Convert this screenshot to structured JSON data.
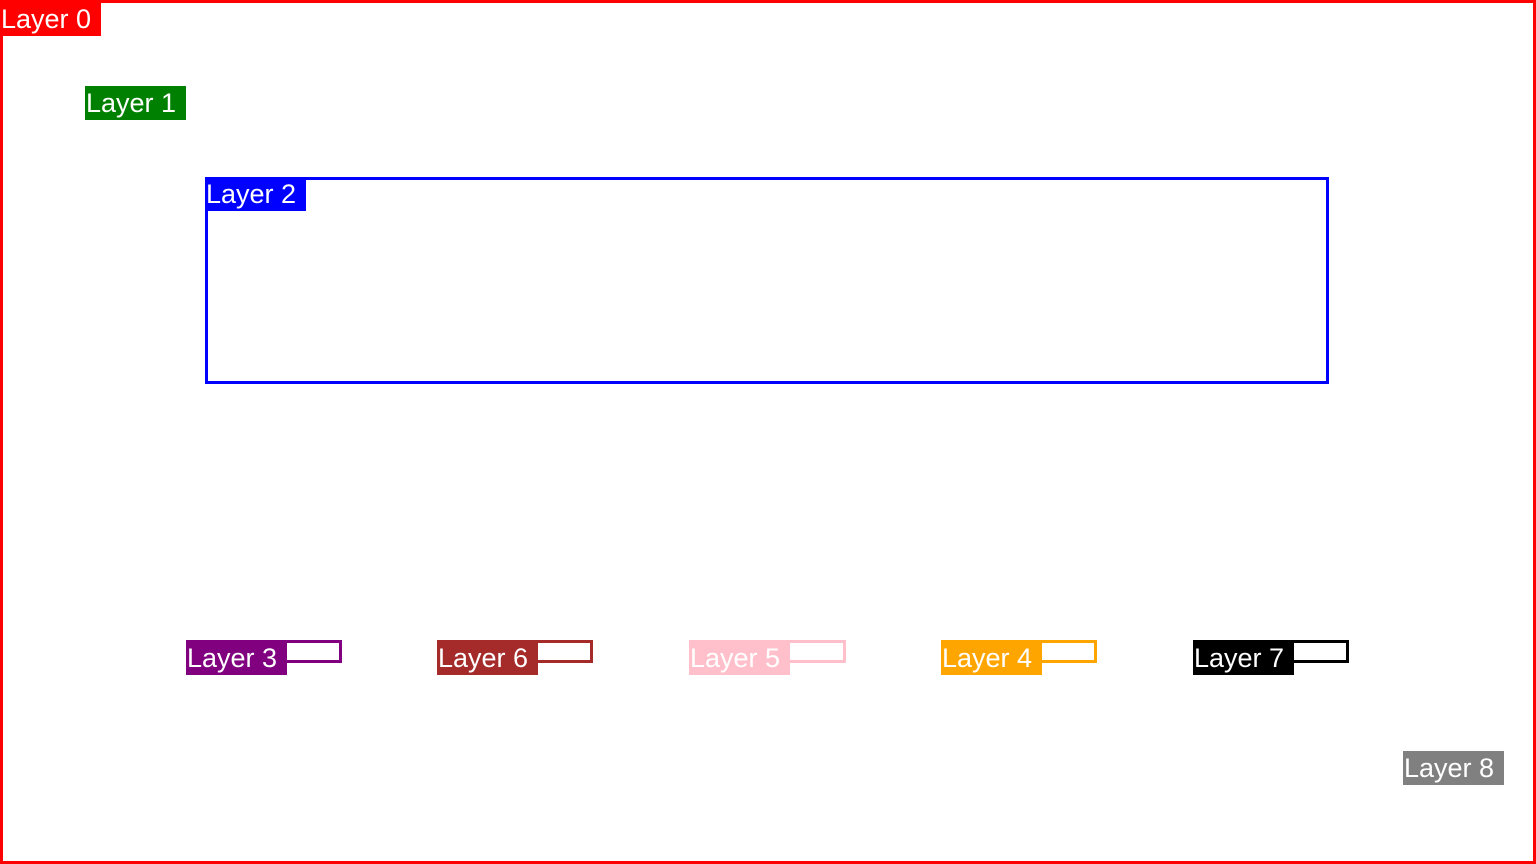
{
  "layers": [
    {
      "label": "Layer 0",
      "color": "#ff0000"
    },
    {
      "label": "Layer 1",
      "color": "#008000"
    },
    {
      "label": "Layer 2",
      "color": "#0000ff"
    },
    {
      "label": "Layer 3",
      "color": "#800080"
    },
    {
      "label": "Layer 4",
      "color": "#ffa500"
    },
    {
      "label": "Layer 5",
      "color": "#ffc0cb"
    },
    {
      "label": "Layer 6",
      "color": "#a52a2a"
    },
    {
      "label": "Layer 7",
      "color": "#000000"
    },
    {
      "label": "Layer 8",
      "color": "#808080"
    }
  ]
}
